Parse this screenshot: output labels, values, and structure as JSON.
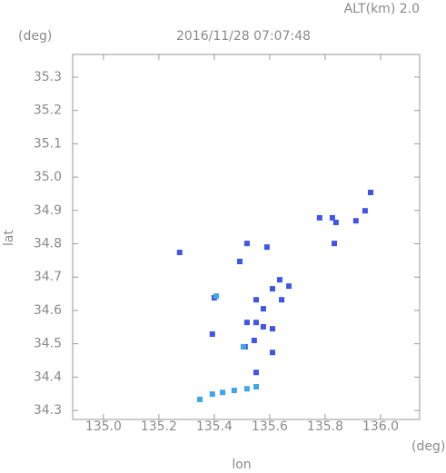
{
  "chart_data": {
    "type": "scatter",
    "title": "2016/11/28 07:07:48",
    "subtitle": "ALT(km) 2.0",
    "x_label": "lon",
    "y_label": "lat",
    "x_unit": "(deg)",
    "y_unit": "(deg)",
    "xlim": [
      134.889,
      136.141
    ],
    "ylim": [
      34.273,
      35.368
    ],
    "xticks": [
      {
        "value": 135,
        "label": "135.0"
      },
      135.2,
      135.4,
      135.6,
      135.8,
      {
        "value": 136,
        "label": "136.0"
      }
    ],
    "yticks": [
      34.3,
      34.4,
      34.5,
      34.6,
      34.7,
      34.8,
      34.9,
      {
        "value": 35,
        "label": "35.0"
      },
      35.1,
      35.2,
      35.3
    ],
    "series": [
      {
        "color": "#3f55e6",
        "x": [
          135.964,
          135.826,
          135.78,
          135.839,
          135.911,
          135.944,
          135.833,
          135.275,
          135.59,
          135.518,
          135.636,
          135.61,
          135.551,
          135.577,
          135.551,
          135.577,
          135.544,
          135.518,
          135.61,
          135.643,
          135.669,
          135.4,
          135.393,
          135.511,
          135.61,
          135.551,
          135.492
        ],
        "y": [
          34.954,
          34.878,
          34.878,
          34.864,
          34.869,
          34.899,
          34.801,
          34.774,
          34.79,
          34.801,
          34.692,
          34.665,
          34.632,
          34.605,
          34.564,
          34.551,
          34.51,
          34.564,
          34.545,
          34.632,
          34.673,
          34.638,
          34.529,
          34.491,
          34.474,
          34.414,
          34.747
        ]
      },
      {
        "color": "#3fa6ea",
        "x": [
          135.407,
          135.505,
          135.348,
          135.393,
          135.43,
          135.472,
          135.518,
          135.551
        ],
        "y": [
          34.643,
          34.491,
          34.333,
          34.349,
          34.354,
          34.36,
          34.365,
          34.371
        ]
      }
    ]
  }
}
